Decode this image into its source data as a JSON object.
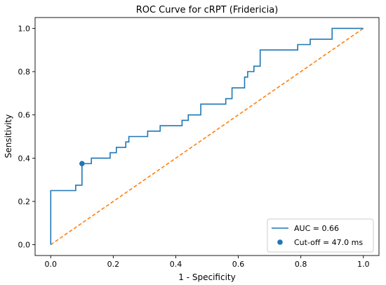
{
  "chart_data": {
    "type": "line",
    "title": "ROC Curve for cRPT (Fridericia)",
    "xlabel": "1 - Specificity",
    "ylabel": "Sensitivity",
    "xlim": [
      -0.05,
      1.05
    ],
    "ylim": [
      -0.05,
      1.05
    ],
    "xticks": [
      0.0,
      0.2,
      0.4,
      0.6,
      0.8,
      1.0
    ],
    "yticks": [
      0.0,
      0.2,
      0.4,
      0.6,
      0.8,
      1.0
    ],
    "xtick_labels": [
      "0.0",
      "0.2",
      "0.4",
      "0.6",
      "0.8",
      "1.0"
    ],
    "ytick_labels": [
      "0.0",
      "0.2",
      "0.4",
      "0.6",
      "0.8",
      "1.0"
    ],
    "grid": false,
    "legend_position": "lower-right",
    "series": [
      {
        "name": "AUC = 0.66",
        "kind": "step-line",
        "color": "#1f77b4",
        "x": [
          0.0,
          0.0,
          0.08,
          0.08,
          0.1,
          0.1,
          0.13,
          0.13,
          0.19,
          0.19,
          0.21,
          0.21,
          0.24,
          0.24,
          0.25,
          0.25,
          0.31,
          0.31,
          0.35,
          0.35,
          0.42,
          0.42,
          0.44,
          0.44,
          0.48,
          0.48,
          0.56,
          0.56,
          0.58,
          0.58,
          0.62,
          0.62,
          0.63,
          0.63,
          0.65,
          0.65,
          0.67,
          0.67,
          0.79,
          0.79,
          0.83,
          0.83,
          0.9,
          0.9,
          1.0
        ],
        "y": [
          0.0,
          0.25,
          0.25,
          0.275,
          0.275,
          0.375,
          0.375,
          0.4,
          0.4,
          0.425,
          0.425,
          0.45,
          0.45,
          0.475,
          0.475,
          0.5,
          0.5,
          0.525,
          0.525,
          0.55,
          0.55,
          0.575,
          0.575,
          0.6,
          0.6,
          0.65,
          0.65,
          0.675,
          0.675,
          0.725,
          0.725,
          0.775,
          0.775,
          0.8,
          0.8,
          0.825,
          0.825,
          0.9,
          0.9,
          0.925,
          0.925,
          0.95,
          0.95,
          1.0,
          1.0
        ]
      },
      {
        "name": "",
        "kind": "dashed-line",
        "color": "#ff7f0e",
        "x": [
          0.0,
          1.0
        ],
        "y": [
          0.0,
          1.0
        ]
      },
      {
        "name": "Cut-off = 47.0 ms",
        "kind": "point",
        "color": "#1f77b4",
        "x": [
          0.1
        ],
        "y": [
          0.375
        ]
      }
    ]
  }
}
